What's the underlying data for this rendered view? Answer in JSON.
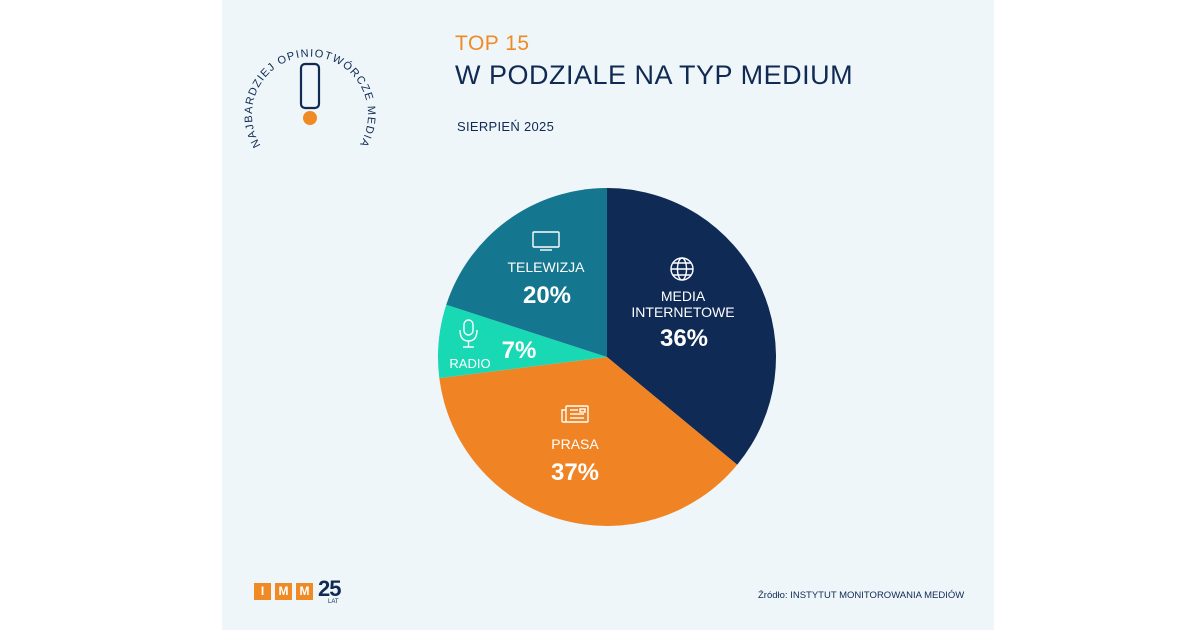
{
  "badge": {
    "text": "NAJBARDZIEJ OPINIOTWÓRCZE MEDIA",
    "mark": "exclamation-icon"
  },
  "header": {
    "line1": "TOP 15",
    "line2": "W PODZIALE NA TYP MEDIUM",
    "line3": "SIERPIEŃ 2025"
  },
  "chart_data": {
    "type": "pie",
    "slices": [
      {
        "label": "MEDIA INTERNETOWE",
        "value": 36,
        "display": "36%",
        "color": "#0f2b55",
        "icon": "globe-icon"
      },
      {
        "label": "PRASA",
        "value": 37,
        "display": "37%",
        "color": "#f08424",
        "icon": "newspaper-icon"
      },
      {
        "label": "RADIO",
        "value": 7,
        "display": "7%",
        "color": "#19d9b4",
        "icon": "microphone-icon"
      },
      {
        "label": "TELEWIZJA",
        "value": 20,
        "display": "20%",
        "color": "#14778f",
        "icon": "tv-icon"
      }
    ],
    "start": "12 o'clock",
    "direction": "clockwise"
  },
  "footer": {
    "logo_letters": [
      "I",
      "M",
      "M"
    ],
    "logo_number": "25",
    "logo_sub": "LAT",
    "source": "Źródło: INSTYTUT MONITOROWANIA MEDIÓW"
  }
}
